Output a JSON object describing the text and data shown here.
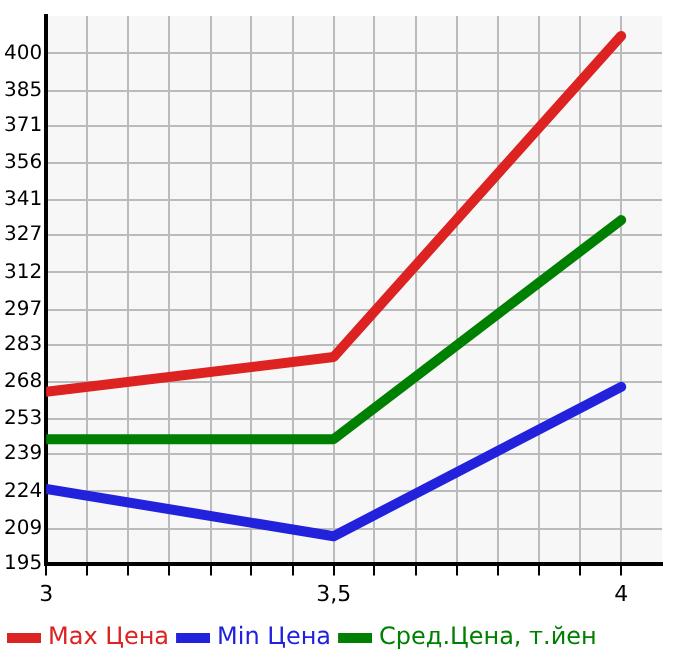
{
  "chart_data": {
    "type": "line",
    "x": [
      3,
      3.5,
      4
    ],
    "series": [
      {
        "name": "Max Цена",
        "color": "#dd2222",
        "values": [
          264,
          278,
          407
        ]
      },
      {
        "name": "Min Цена",
        "color": "#2222dd",
        "values": [
          225,
          206,
          266
        ]
      },
      {
        "name": "Сред.Цена, т.йен",
        "color": "#008000",
        "values": [
          245,
          245,
          333
        ]
      }
    ],
    "xlim": [
      3,
      4.071
    ],
    "xticks": [
      3,
      {
        "value": 3.071,
        "label": null
      },
      {
        "value": 3.143,
        "label": null
      },
      {
        "value": 3.214,
        "label": null
      },
      {
        "value": 3.286,
        "label": null
      },
      {
        "value": 3.357,
        "label": null
      },
      {
        "value": 3.429,
        "label": null
      },
      {
        "value": 3.5,
        "label": "3,5"
      },
      {
        "value": 3.571,
        "label": null
      },
      {
        "value": 3.643,
        "label": null
      },
      {
        "value": 3.714,
        "label": null
      },
      {
        "value": 3.786,
        "label": null
      },
      {
        "value": 3.857,
        "label": null
      },
      {
        "value": 3.929,
        "label": null
      },
      4
    ],
    "ylim": [
      195,
      415
    ],
    "yticks": [
      195,
      209,
      224,
      239,
      253,
      268,
      283,
      297,
      312,
      327,
      341,
      356,
      371,
      385,
      400
    ],
    "grid": true,
    "legend": "bottom",
    "marker": "none",
    "line_style": "solid"
  }
}
